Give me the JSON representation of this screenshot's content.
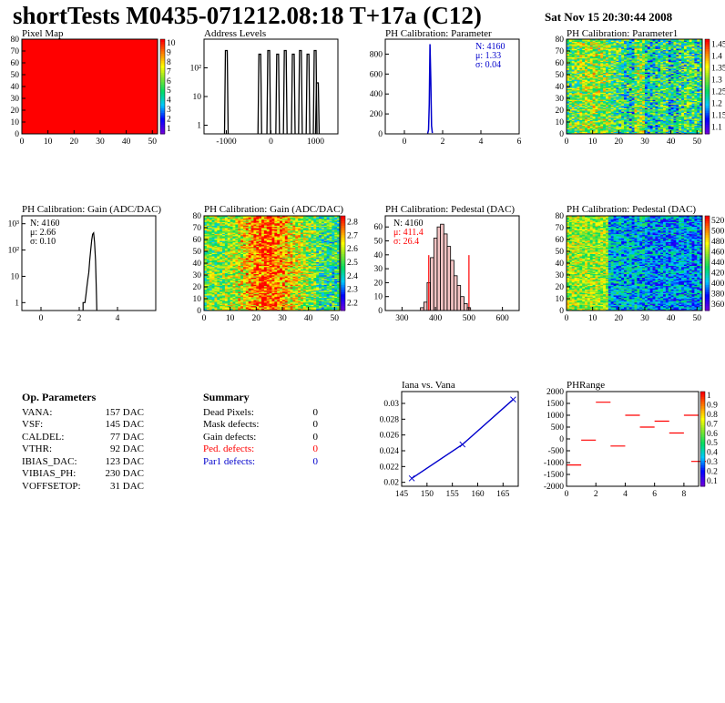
{
  "header": {
    "title": "shortTests M0435-071212.08:18 T+17a (C12)",
    "date": "Sat Nov 15 20:30:44 2008"
  },
  "panels": {
    "pixel_map": {
      "title": "Pixel Map",
      "xticks": [
        "0",
        "10",
        "20",
        "30",
        "40",
        "50"
      ],
      "yticks": [
        "0",
        "10",
        "20",
        "30",
        "40",
        "50",
        "60",
        "70",
        "80"
      ],
      "zticks": [
        "1",
        "2",
        "3",
        "4",
        "5",
        "6",
        "7",
        "8",
        "9",
        "10"
      ]
    },
    "address_levels": {
      "title": "Address Levels",
      "xticks": [
        "-1000",
        "0",
        "1000"
      ],
      "yticks": [
        "1",
        "10",
        "10²"
      ]
    },
    "ph_param": {
      "title": "PH Calibration: Parameter",
      "xticks": [
        "0",
        "2",
        "4",
        "6"
      ],
      "yticks": [
        "0",
        "200",
        "400",
        "600",
        "800"
      ],
      "stats": [
        "N: 4160",
        "μ: 1.33",
        "σ: 0.04"
      ]
    },
    "ph_param1": {
      "title": "PH Calibration: Parameter1",
      "xticks": [
        "0",
        "10",
        "20",
        "30",
        "40",
        "50"
      ],
      "yticks": [
        "0",
        "10",
        "20",
        "30",
        "40",
        "50",
        "60",
        "70",
        "80"
      ],
      "zticks": [
        "1.1",
        "1.15",
        "1.2",
        "1.25",
        "1.3",
        "1.35",
        "1.4",
        "1.45"
      ]
    },
    "gain_hist": {
      "title": "PH Calibration: Gain (ADC/DAC)",
      "xticks": [
        "0",
        "2",
        "4"
      ],
      "yticks": [
        "1",
        "10",
        "10²",
        "10³"
      ],
      "stats": [
        "N: 4160",
        "μ: 2.66",
        "σ: 0.10"
      ]
    },
    "gain_map": {
      "title": "PH Calibration: Gain (ADC/DAC)",
      "xticks": [
        "0",
        "10",
        "20",
        "30",
        "40",
        "50"
      ],
      "yticks": [
        "0",
        "10",
        "20",
        "30",
        "40",
        "50",
        "60",
        "70",
        "80"
      ],
      "zticks": [
        "2.2",
        "2.3",
        "2.4",
        "2.5",
        "2.6",
        "2.7",
        "2.8"
      ]
    },
    "ped_hist": {
      "title": "PH Calibration: Pedestal (DAC)",
      "xticks": [
        "300",
        "400",
        "500",
        "600"
      ],
      "yticks": [
        "0",
        "10",
        "20",
        "30",
        "40",
        "50",
        "60"
      ],
      "stats": [
        "N: 4160",
        "μ: 411.4",
        "σ: 26.4"
      ]
    },
    "ped_map": {
      "title": "PH Calibration: Pedestal (DAC)",
      "xticks": [
        "0",
        "10",
        "20",
        "30",
        "40",
        "50"
      ],
      "yticks": [
        "0",
        "10",
        "20",
        "30",
        "40",
        "50",
        "60",
        "70",
        "80"
      ],
      "zticks": [
        "360",
        "380",
        "400",
        "420",
        "440",
        "460",
        "480",
        "500",
        "520"
      ]
    },
    "iana": {
      "title": "Iana vs. Vana",
      "xticks": [
        "145",
        "150",
        "155",
        "160",
        "165"
      ],
      "yticks": [
        "0.02",
        "0.022",
        "0.024",
        "0.026",
        "0.028",
        "0.03"
      ]
    },
    "phrange": {
      "title": "PHRange",
      "xticks": [
        "0",
        "2",
        "4",
        "6",
        "8"
      ],
      "yticks": [
        "-2000",
        "-1500",
        "-1000",
        "-500",
        "0",
        "500",
        "1000",
        "1500",
        "2000"
      ],
      "zticks": [
        "0.1",
        "0.2",
        "0.3",
        "0.4",
        "0.5",
        "0.6",
        "0.7",
        "0.8",
        "0.9",
        "1"
      ]
    }
  },
  "op_params": {
    "heading": "Op. Parameters",
    "rows": [
      {
        "name": "VANA:",
        "value": "157 DAC"
      },
      {
        "name": "VSF:",
        "value": "145 DAC"
      },
      {
        "name": "CALDEL:",
        "value": "77 DAC"
      },
      {
        "name": "VTHR:",
        "value": "92 DAC"
      },
      {
        "name": "IBIAS_DAC:",
        "value": "123 DAC"
      },
      {
        "name": "VIBIAS_PH:",
        "value": "230 DAC"
      },
      {
        "name": "VOFFSETOP:",
        "value": "31 DAC"
      }
    ]
  },
  "summary": {
    "heading": "Summary",
    "rows": [
      {
        "name": "Dead Pixels:",
        "value": "0",
        "color": "#000000"
      },
      {
        "name": "Mask defects:",
        "value": "0",
        "color": "#000000"
      },
      {
        "name": "Gain defects:",
        "value": "0",
        "color": "#000000"
      },
      {
        "name": "Ped. defects:",
        "value": "0",
        "color": "#ff0000"
      },
      {
        "name": "Par1 defects:",
        "value": "0",
        "color": "#0000cc"
      }
    ]
  },
  "chart_data": [
    {
      "type": "heatmap",
      "panel": "pixel_map",
      "title": "Pixel Map",
      "x_range": [
        0,
        52
      ],
      "y_range": [
        0,
        80
      ],
      "z_range": [
        0,
        10
      ],
      "uniform_value": 10,
      "fill_color": "#ff0000"
    },
    {
      "type": "bar",
      "panel": "address_levels",
      "title": "Address Levels",
      "log_y": true,
      "xlim": [
        -1500,
        1500
      ],
      "peaks": [
        {
          "x": -1000,
          "height": 400
        },
        {
          "x": -250,
          "height": 300
        },
        {
          "x": -50,
          "height": 400
        },
        {
          "x": 150,
          "height": 300
        },
        {
          "x": 320,
          "height": 400
        },
        {
          "x": 500,
          "height": 300
        },
        {
          "x": 660,
          "height": 400
        },
        {
          "x": 830,
          "height": 300
        },
        {
          "x": 990,
          "height": 400
        },
        {
          "x": 1040,
          "height": 30
        }
      ]
    },
    {
      "type": "bar",
      "panel": "ph_param",
      "title": "PH Calibration: Parameter",
      "xlim": [
        -1,
        6
      ],
      "ylim": [
        0,
        950
      ],
      "color": "#0000cc",
      "x": [
        1.22,
        1.26,
        1.3,
        1.34,
        1.38,
        1.42,
        1.46
      ],
      "values": [
        5,
        40,
        300,
        900,
        540,
        80,
        8
      ],
      "stats": {
        "N": 4160,
        "mean": 1.33,
        "sigma": 0.04
      }
    },
    {
      "type": "heatmap",
      "panel": "ph_param1",
      "title": "PH Calibration: Parameter1",
      "x_range": [
        0,
        52
      ],
      "y_range": [
        0,
        80
      ],
      "z_range": [
        1.1,
        1.45
      ]
    },
    {
      "type": "bar",
      "panel": "gain_hist",
      "title": "PH Calibration: Gain (ADC/DAC)",
      "log_y": true,
      "xlim": [
        -1,
        6
      ],
      "ylim": [
        0.5,
        2000
      ],
      "x": [
        2.2,
        2.3,
        2.35,
        2.4,
        2.45,
        2.5,
        2.55,
        2.6,
        2.65,
        2.7,
        2.75,
        2.8,
        2.85,
        2.9
      ],
      "values": [
        1,
        1,
        2,
        4,
        8,
        14,
        40,
        100,
        240,
        400,
        450,
        200,
        40,
        2
      ],
      "stats": {
        "N": 4160,
        "mean": 2.66,
        "sigma": 0.1
      }
    },
    {
      "type": "heatmap",
      "panel": "gain_map",
      "title": "PH Calibration: Gain (ADC/DAC)",
      "x_range": [
        0,
        52
      ],
      "y_range": [
        0,
        80
      ],
      "z_range": [
        2.15,
        2.85
      ]
    },
    {
      "type": "bar",
      "panel": "ped_hist",
      "title": "PH Calibration: Pedestal (DAC)",
      "xlim": [
        250,
        650
      ],
      "ylim": [
        0,
        68
      ],
      "x": [
        360,
        370,
        380,
        390,
        400,
        410,
        420,
        430,
        440,
        450,
        460,
        470,
        480,
        490,
        500
      ],
      "values": [
        2,
        6,
        20,
        38,
        52,
        60,
        62,
        55,
        46,
        36,
        25,
        18,
        10,
        5,
        2
      ],
      "cut_lines": [
        380,
        500
      ],
      "stats": {
        "N": 4160,
        "mean": 411.4,
        "sigma": 26.4
      }
    },
    {
      "type": "heatmap",
      "panel": "ped_map",
      "title": "PH Calibration: Pedestal (DAC)",
      "x_range": [
        0,
        52
      ],
      "y_range": [
        0,
        80
      ],
      "z_range": [
        350,
        530
      ]
    },
    {
      "type": "line",
      "panel": "iana",
      "title": "Iana vs. Vana",
      "xlim": [
        145,
        168
      ],
      "ylim": [
        0.0195,
        0.0315
      ],
      "color": "#0000cc",
      "x": [
        147,
        157,
        167
      ],
      "y": [
        0.0205,
        0.0248,
        0.0305
      ]
    },
    {
      "type": "scatter",
      "panel": "phrange",
      "title": "PHRange",
      "xlim": [
        0,
        9
      ],
      "ylim": [
        -2000,
        2000
      ],
      "color": "#ff0000",
      "segments": [
        {
          "x": 0,
          "y": -1100
        },
        {
          "x": 1,
          "y": -50
        },
        {
          "x": 2,
          "y": 1550
        },
        {
          "x": 3,
          "y": -300
        },
        {
          "x": 4,
          "y": 1000
        },
        {
          "x": 5,
          "y": 500
        },
        {
          "x": 6,
          "y": 750
        },
        {
          "x": 7,
          "y": 250
        },
        {
          "x": 8,
          "y": 1000
        },
        {
          "x": 8.5,
          "y": -950
        }
      ]
    }
  ]
}
